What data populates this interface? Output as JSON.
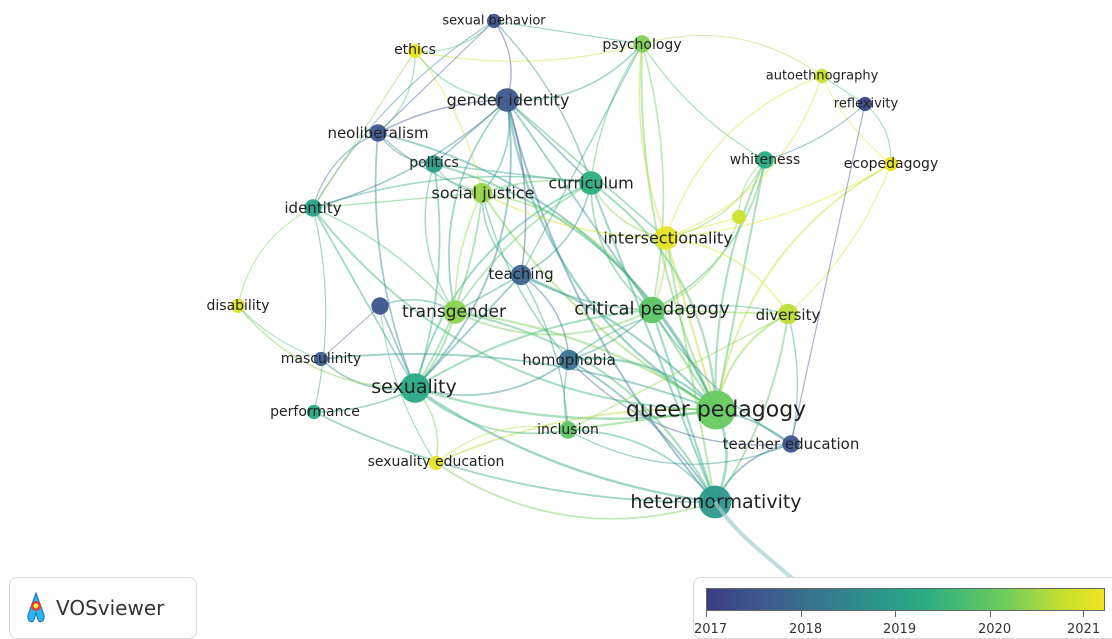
{
  "app": {
    "name": "VOSviewer"
  },
  "legend": {
    "ticks": [
      "2017",
      "2018",
      "2019",
      "2020",
      "2021"
    ],
    "colors": [
      "#3b3d84",
      "#3e5f8f",
      "#2e8c8e",
      "#29ac83",
      "#6dcc5b",
      "#c7e02e",
      "#f1e51d"
    ]
  },
  "network": {
    "nodes": [
      {
        "id": "queer_pedagogy",
        "label": "queer pedagogy",
        "year": 2019.6,
        "weight": 10
      },
      {
        "id": "heteronormativity",
        "label": "heteronormativity",
        "year": 2018.5,
        "weight": 8
      },
      {
        "id": "sexuality",
        "label": "sexuality",
        "year": 2018.9,
        "weight": 7
      },
      {
        "id": "critical_pedagogy",
        "label": "critical pedagogy",
        "year": 2019.5,
        "weight": 6
      },
      {
        "id": "transgender",
        "label": "transgender",
        "year": 2019.9,
        "weight": 5
      },
      {
        "id": "curriculum",
        "label": "curriculum",
        "year": 2019.0,
        "weight": 5
      },
      {
        "id": "gender_identity",
        "label": "gender identity",
        "year": 2017.4,
        "weight": 5
      },
      {
        "id": "social_justice",
        "label": "social justice",
        "year": 2020.0,
        "weight": 4
      },
      {
        "id": "intersectionality",
        "label": "intersectionality",
        "year": 2020.9,
        "weight": 5
      },
      {
        "id": "teaching",
        "label": "teaching",
        "year": 2017.6,
        "weight": 4
      },
      {
        "id": "homophobia",
        "label": "homophobia",
        "year": 2017.8,
        "weight": 4
      },
      {
        "id": "diversity",
        "label": "diversity",
        "year": 2020.3,
        "weight": 4
      },
      {
        "id": "teacher_education",
        "label": "teacher education",
        "year": 2017.3,
        "weight": 3
      },
      {
        "id": "inclusion",
        "label": "inclusion",
        "year": 2019.5,
        "weight": 3
      },
      {
        "id": "sexuality_education",
        "label": "sexuality education",
        "year": 2020.9,
        "weight": 2
      },
      {
        "id": "politics",
        "label": "politics",
        "year": 2018.6,
        "weight": 3
      },
      {
        "id": "neoliberalism",
        "label": "neoliberalism",
        "year": 2017.3,
        "weight": 3
      },
      {
        "id": "identity",
        "label": "identity",
        "year": 2018.7,
        "weight": 3
      },
      {
        "id": "disability",
        "label": "disability",
        "year": 2020.8,
        "weight": 2
      },
      {
        "id": "masculinity",
        "label": "masculinity",
        "year": 2017.5,
        "weight": 2
      },
      {
        "id": "performance",
        "label": "performance",
        "year": 2018.8,
        "weight": 2
      },
      {
        "id": "psychology",
        "label": "psychology",
        "year": 2019.8,
        "weight": 3
      },
      {
        "id": "ethics",
        "label": "ethics",
        "year": 2021.0,
        "weight": 2
      },
      {
        "id": "sexual_behavior",
        "label": "sexual behavior",
        "year": 2017.2,
        "weight": 2
      },
      {
        "id": "autoethnography",
        "label": "autoethnography",
        "year": 2020.4,
        "weight": 2
      },
      {
        "id": "reflexivity",
        "label": "reflexivity",
        "year": 2017.0,
        "weight": 2
      },
      {
        "id": "whiteness",
        "label": "whiteness",
        "year": 2018.9,
        "weight": 3
      },
      {
        "id": "ecopedagogy",
        "label": "ecopedagogy",
        "year": 2021.0,
        "weight": 2
      },
      {
        "id": "unlabeled_green",
        "label": "",
        "year": 2020.5,
        "weight": 2
      },
      {
        "id": "unlabeled_purple",
        "label": "",
        "year": 2017.3,
        "weight": 3
      }
    ],
    "links": [
      [
        "queer_pedagogy",
        "heteronormativity"
      ],
      [
        "queer_pedagogy",
        "sexuality"
      ],
      [
        "queer_pedagogy",
        "critical_pedagogy"
      ],
      [
        "queer_pedagogy",
        "transgender"
      ],
      [
        "queer_pedagogy",
        "curriculum"
      ],
      [
        "queer_pedagogy",
        "gender_identity"
      ],
      [
        "queer_pedagogy",
        "social_justice"
      ],
      [
        "queer_pedagogy",
        "intersectionality"
      ],
      [
        "queer_pedagogy",
        "teaching"
      ],
      [
        "queer_pedagogy",
        "homophobia"
      ],
      [
        "queer_pedagogy",
        "diversity"
      ],
      [
        "queer_pedagogy",
        "teacher_education"
      ],
      [
        "queer_pedagogy",
        "inclusion"
      ],
      [
        "queer_pedagogy",
        "sexuality_education"
      ],
      [
        "queer_pedagogy",
        "politics"
      ],
      [
        "queer_pedagogy",
        "identity"
      ],
      [
        "queer_pedagogy",
        "psychology"
      ],
      [
        "queer_pedagogy",
        "whiteness"
      ],
      [
        "queer_pedagogy",
        "masculinity"
      ],
      [
        "queer_pedagogy",
        "neoliberalism"
      ],
      [
        "queer_pedagogy",
        "ecopedagogy"
      ],
      [
        "heteronormativity",
        "sexuality"
      ],
      [
        "heteronormativity",
        "critical_pedagogy"
      ],
      [
        "heteronormativity",
        "homophobia"
      ],
      [
        "heteronormativity",
        "transgender"
      ],
      [
        "heteronormativity",
        "teacher_education"
      ],
      [
        "heteronormativity",
        "gender_identity"
      ],
      [
        "heteronormativity",
        "curriculum"
      ],
      [
        "heteronormativity",
        "diversity"
      ],
      [
        "heteronormativity",
        "inclusion"
      ],
      [
        "heteronormativity",
        "sexuality_education"
      ],
      [
        "heteronormativity",
        "performance"
      ],
      [
        "heteronormativity",
        "intersectionality"
      ],
      [
        "sexuality",
        "transgender"
      ],
      [
        "sexuality",
        "gender_identity"
      ],
      [
        "sexuality",
        "masculinity"
      ],
      [
        "sexuality",
        "performance"
      ],
      [
        "sexuality",
        "identity"
      ],
      [
        "sexuality",
        "politics"
      ],
      [
        "sexuality",
        "homophobia"
      ],
      [
        "sexuality",
        "sexuality_education"
      ],
      [
        "sexuality",
        "neoliberalism"
      ],
      [
        "sexuality",
        "unlabeled_purple"
      ],
      [
        "sexuality",
        "social_justice"
      ],
      [
        "sexuality",
        "inclusion"
      ],
      [
        "sexuality",
        "curriculum"
      ],
      [
        "sexuality",
        "critical_pedagogy"
      ],
      [
        "sexuality",
        "teaching"
      ],
      [
        "critical_pedagogy",
        "intersectionality"
      ],
      [
        "critical_pedagogy",
        "social_justice"
      ],
      [
        "critical_pedagogy",
        "curriculum"
      ],
      [
        "critical_pedagogy",
        "teaching"
      ],
      [
        "critical_pedagogy",
        "diversity"
      ],
      [
        "critical_pedagogy",
        "psychology"
      ],
      [
        "critical_pedagogy",
        "whiteness"
      ],
      [
        "critical_pedagogy",
        "transgender"
      ],
      [
        "critical_pedagogy",
        "homophobia"
      ],
      [
        "critical_pedagogy",
        "gender_identity"
      ],
      [
        "critical_pedagogy",
        "teacher_education"
      ],
      [
        "critical_pedagogy",
        "unlabeled_green"
      ],
      [
        "transgender",
        "gender_identity"
      ],
      [
        "transgender",
        "social_justice"
      ],
      [
        "transgender",
        "teaching"
      ],
      [
        "transgender",
        "identity"
      ],
      [
        "transgender",
        "unlabeled_purple"
      ],
      [
        "transgender",
        "politics"
      ],
      [
        "transgender",
        "curriculum"
      ],
      [
        "curriculum",
        "gender_identity"
      ],
      [
        "curriculum",
        "social_justice"
      ],
      [
        "curriculum",
        "intersectionality"
      ],
      [
        "curriculum",
        "teaching"
      ],
      [
        "curriculum",
        "psychology"
      ],
      [
        "curriculum",
        "politics"
      ],
      [
        "curriculum",
        "identity"
      ],
      [
        "gender_identity",
        "sexual_behavior"
      ],
      [
        "gender_identity",
        "social_justice"
      ],
      [
        "gender_identity",
        "teaching"
      ],
      [
        "gender_identity",
        "politics"
      ],
      [
        "gender_identity",
        "neoliberalism"
      ],
      [
        "gender_identity",
        "psychology"
      ],
      [
        "gender_identity",
        "ethics"
      ],
      [
        "gender_identity",
        "identity"
      ],
      [
        "gender_identity",
        "intersectionality"
      ],
      [
        "social_justice",
        "intersectionality"
      ],
      [
        "social_justice",
        "teaching"
      ],
      [
        "social_justice",
        "politics"
      ],
      [
        "social_justice",
        "neoliberalism"
      ],
      [
        "social_justice",
        "identity"
      ],
      [
        "social_justice",
        "homophobia"
      ],
      [
        "intersectionality",
        "whiteness"
      ],
      [
        "intersectionality",
        "diversity"
      ],
      [
        "intersectionality",
        "psychology"
      ],
      [
        "intersectionality",
        "unlabeled_green"
      ],
      [
        "intersectionality",
        "ecopedagogy"
      ],
      [
        "intersectionality",
        "autoethnography"
      ],
      [
        "teaching",
        "homophobia"
      ],
      [
        "teaching",
        "inclusion"
      ],
      [
        "teaching",
        "psychology"
      ],
      [
        "homophobia",
        "inclusion"
      ],
      [
        "homophobia",
        "teacher_education"
      ],
      [
        "homophobia",
        "diversity"
      ],
      [
        "diversity",
        "teacher_education"
      ],
      [
        "diversity",
        "inclusion"
      ],
      [
        "diversity",
        "ecopedagogy"
      ],
      [
        "identity",
        "disability"
      ],
      [
        "identity",
        "neoliberalism"
      ],
      [
        "identity",
        "sexual_behavior"
      ],
      [
        "identity",
        "ethics"
      ],
      [
        "disability",
        "masculinity"
      ],
      [
        "disability",
        "sexuality"
      ],
      [
        "psychology",
        "autoethnography"
      ],
      [
        "psychology",
        "ethics"
      ],
      [
        "psychology",
        "sexual_behavior"
      ],
      [
        "psychology",
        "whiteness"
      ],
      [
        "ethics",
        "sexual_behavior"
      ],
      [
        "ethics",
        "neoliberalism"
      ],
      [
        "ethics",
        "social_justice"
      ],
      [
        "autoethnography",
        "reflexivity"
      ],
      [
        "autoethnography",
        "ecopedagogy"
      ],
      [
        "autoethnography",
        "intersectionality"
      ],
      [
        "reflexivity",
        "ecopedagogy"
      ],
      [
        "reflexivity",
        "whiteness"
      ],
      [
        "reflexivity",
        "teacher_education"
      ],
      [
        "whiteness",
        "queer_pedagogy"
      ],
      [
        "whiteness",
        "unlabeled_green"
      ],
      [
        "sexuality_education",
        "inclusion"
      ],
      [
        "sexuality_education",
        "unlabeled_purple"
      ],
      [
        "masculinity",
        "unlabeled_purple"
      ],
      [
        "performance",
        "identity"
      ],
      [
        "neoliberalism",
        "politics"
      ],
      [
        "teacher_education",
        "inclusion"
      ],
      [
        "sexual_behavior",
        "curriculum"
      ],
      [
        "sexual_behavior",
        "neoliberalism"
      ]
    ]
  }
}
